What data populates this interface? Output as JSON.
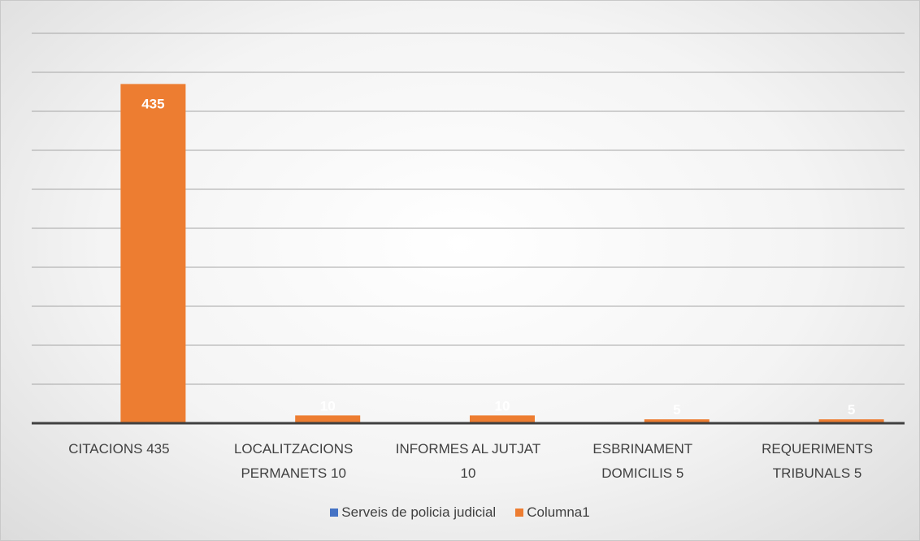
{
  "chart_data": {
    "type": "bar",
    "categories": [
      "CITACIONS  435",
      "LOCALITZACIONS PERMANETS 10",
      "INFORMES AL JUTJAT 10",
      "ESBRINAMENT DOMICILIS 5",
      "REQUERIMENTS TRIBUNALS 5"
    ],
    "series": [
      {
        "name": "Serveis de policia judicial",
        "color": "#4472c4",
        "values": [
          null,
          null,
          null,
          null,
          null
        ]
      },
      {
        "name": "Columna1",
        "color": "#ed7d31",
        "values": [
          435,
          10,
          10,
          5,
          5
        ]
      }
    ],
    "ylim": [
      0,
      500
    ],
    "yticks": [
      0,
      50,
      100,
      150,
      200,
      250,
      300,
      350,
      400,
      450,
      500
    ],
    "grid": true,
    "legend": "bottom"
  }
}
